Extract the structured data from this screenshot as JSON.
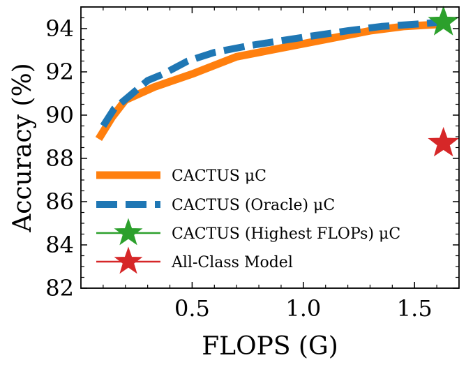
{
  "chart_data": {
    "type": "line",
    "title": "",
    "xlabel": "FLOPS (G)",
    "ylabel": "Accuracy (%)",
    "xlim": [
      0.0,
      1.7
    ],
    "ylim": [
      82,
      95
    ],
    "xticks": [
      0.5,
      1.0,
      1.5
    ],
    "xtick_labels": [
      "0.5",
      "1.0",
      "1.5"
    ],
    "yticks": [
      82,
      84,
      86,
      88,
      90,
      92,
      94
    ],
    "ytick_labels": [
      "82",
      "84",
      "86",
      "88",
      "90",
      "92",
      "94"
    ],
    "grid": false,
    "legend_position": "lower-left",
    "series": [
      {
        "name": "CACTUS μC",
        "style": "solid",
        "color": "#ff7f0e",
        "x": [
          0.08,
          0.14,
          0.2,
          0.33,
          0.5,
          0.7,
          1.0,
          1.3,
          1.45,
          1.62
        ],
        "y": [
          88.9,
          89.9,
          90.7,
          91.3,
          91.9,
          92.7,
          93.3,
          93.9,
          94.1,
          94.2
        ]
      },
      {
        "name": "CACTUS (Oracle) μC",
        "style": "dashed",
        "color": "#1f77b4",
        "x": [
          0.1,
          0.15,
          0.22,
          0.3,
          0.37,
          0.48,
          0.6,
          0.75,
          1.0,
          1.2,
          1.35,
          1.5,
          1.62
        ],
        "y": [
          89.5,
          90.3,
          90.9,
          91.6,
          91.9,
          92.5,
          92.9,
          93.2,
          93.6,
          93.9,
          94.1,
          94.2,
          94.3
        ]
      }
    ],
    "points": [
      {
        "name": "CACTUS (Highest FLOPs) μC",
        "marker": "star",
        "color": "#2ca02c",
        "x": 1.63,
        "y": 94.3
      },
      {
        "name": "All-Class Model",
        "marker": "star",
        "color": "#d62728",
        "x": 1.63,
        "y": 88.7
      }
    ],
    "legend": [
      {
        "label": "CACTUS μC",
        "kind": "solid",
        "color": "#ff7f0e"
      },
      {
        "label": "CACTUS (Oracle) μC",
        "kind": "dashed",
        "color": "#1f77b4"
      },
      {
        "label": "CACTUS (Highest FLOPs) μC",
        "kind": "star",
        "color": "#2ca02c"
      },
      {
        "label": "All-Class Model",
        "kind": "star",
        "color": "#d62728"
      }
    ]
  }
}
